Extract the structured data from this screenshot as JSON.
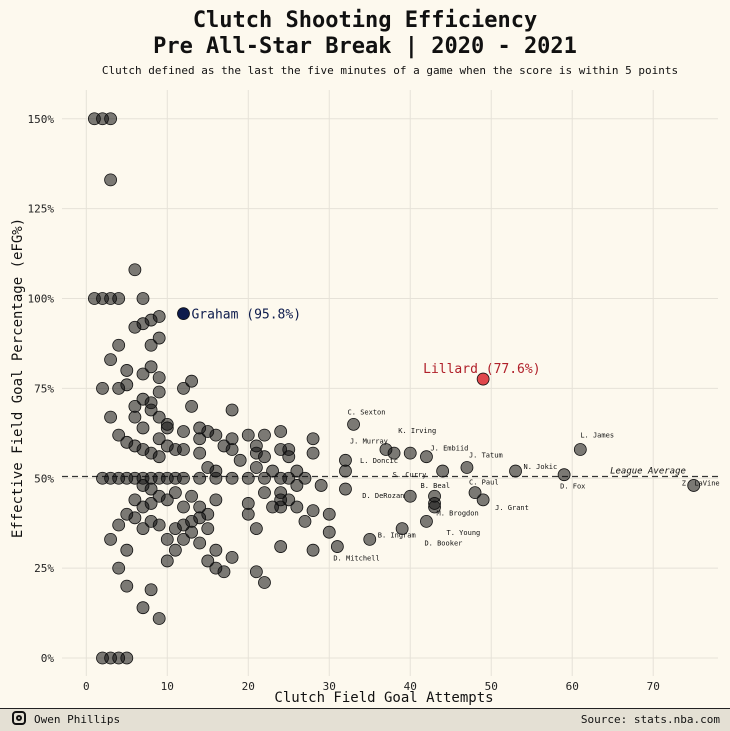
{
  "header": {
    "title_line1": "Clutch Shooting Efficiency",
    "title_line2": "Pre All-Star Break | 2020 - 2021",
    "subtitle": "Clutch defined as the last the five minutes of a game when the score is within 5 points"
  },
  "footer": {
    "author": "Owen Phillips",
    "source": "Source: stats.nba.com",
    "icon": "instagram-icon"
  },
  "colors": {
    "background": "#fdf9ee",
    "point_fill": "#111111",
    "highlight_graham": "#0d1b4c",
    "highlight_lillard": "#e0474c",
    "label_lillard": "#b0202a",
    "label_graham": "#0d1b4c"
  },
  "chart_data": {
    "type": "scatter",
    "xlabel": "Clutch Field Goal Attempts",
    "ylabel": "Effective Field Goal Percentage (eFG%)",
    "xlim": [
      -3,
      78
    ],
    "ylim": [
      -5,
      158
    ],
    "xticks": [
      0,
      10,
      20,
      30,
      40,
      50,
      60,
      70
    ],
    "yticks": [
      0,
      25,
      50,
      75,
      100,
      125,
      150
    ],
    "ytick_labels": [
      "0%",
      "25%",
      "50%",
      "75%",
      "100%",
      "125%",
      "150%"
    ],
    "grid": true,
    "league_average": {
      "y": 50.5,
      "label": "League Average"
    },
    "highlights": [
      {
        "name": "Graham",
        "label": "Graham (95.8%)",
        "x": 12,
        "y": 95.8,
        "color": "#0d1b4c"
      },
      {
        "name": "Lillard",
        "label": "Lillard (77.6%)",
        "x": 49,
        "y": 77.6,
        "color": "#e0474c"
      }
    ],
    "labeled_points": [
      {
        "label": "C. Sexton",
        "x": 33,
        "y": 65
      },
      {
        "label": "J. Murray",
        "x": 37,
        "y": 58
      },
      {
        "label": "L. Doncic",
        "x": 38,
        "y": 57
      },
      {
        "label": "K. Irving",
        "x": 40,
        "y": 57
      },
      {
        "label": "J. Embiid",
        "x": 42,
        "y": 56
      },
      {
        "label": "S. Curry",
        "x": 44,
        "y": 52
      },
      {
        "label": "J. Tatum",
        "x": 47,
        "y": 53
      },
      {
        "label": "N. Jokic",
        "x": 53,
        "y": 52
      },
      {
        "label": "L. James",
        "x": 61,
        "y": 58
      },
      {
        "label": "D. Fox",
        "x": 59,
        "y": 51
      },
      {
        "label": "Z. LaVine",
        "x": 75,
        "y": 48
      },
      {
        "label": "C. Paul",
        "x": 48,
        "y": 46
      },
      {
        "label": "B. Beal",
        "x": 43,
        "y": 45
      },
      {
        "label": "D. DeRozan",
        "x": 40,
        "y": 45
      },
      {
        "label": "J. Grant",
        "x": 49,
        "y": 44
      },
      {
        "label": "M. Brogdon",
        "x": 43,
        "y": 43
      },
      {
        "label": "T. Young",
        "x": 43,
        "y": 42
      },
      {
        "label": "D. Booker",
        "x": 42,
        "y": 38
      },
      {
        "label": "B. Ingram",
        "x": 35,
        "y": 33
      },
      {
        "label": "D. Mitchell",
        "x": 31,
        "y": 31
      }
    ],
    "points": [
      [
        1,
        150
      ],
      [
        2,
        150
      ],
      [
        3,
        150
      ],
      [
        3,
        133
      ],
      [
        1,
        100
      ],
      [
        2,
        100
      ],
      [
        3,
        100
      ],
      [
        4,
        100
      ],
      [
        6,
        108
      ],
      [
        7,
        100
      ],
      [
        6,
        92
      ],
      [
        7,
        93
      ],
      [
        8,
        94
      ],
      [
        9,
        95
      ],
      [
        9,
        89
      ],
      [
        8,
        87
      ],
      [
        4,
        87
      ],
      [
        3,
        83
      ],
      [
        5,
        80
      ],
      [
        7,
        79
      ],
      [
        8,
        81
      ],
      [
        9,
        78
      ],
      [
        9,
        74
      ],
      [
        8,
        71
      ],
      [
        7,
        72
      ],
      [
        5,
        76
      ],
      [
        2,
        75
      ],
      [
        4,
        75
      ],
      [
        6,
        70
      ],
      [
        8,
        69
      ],
      [
        9,
        67
      ],
      [
        10,
        65
      ],
      [
        7,
        64
      ],
      [
        6,
        67
      ],
      [
        3,
        67
      ],
      [
        4,
        62
      ],
      [
        5,
        60
      ],
      [
        6,
        59
      ],
      [
        7,
        58
      ],
      [
        8,
        57
      ],
      [
        9,
        56
      ],
      [
        10,
        59
      ],
      [
        11,
        58
      ],
      [
        12,
        58
      ],
      [
        9,
        61
      ],
      [
        10,
        64
      ],
      [
        12,
        63
      ],
      [
        13,
        70
      ],
      [
        12,
        75
      ],
      [
        13,
        77
      ],
      [
        14,
        64
      ],
      [
        15,
        63
      ],
      [
        14,
        61
      ],
      [
        16,
        62
      ],
      [
        14,
        57
      ],
      [
        15,
        53
      ],
      [
        16,
        52
      ],
      [
        17,
        59
      ],
      [
        18,
        61
      ],
      [
        18,
        58
      ],
      [
        19,
        55
      ],
      [
        18,
        69
      ],
      [
        20,
        62
      ],
      [
        21,
        57
      ],
      [
        22,
        62
      ],
      [
        21,
        59
      ],
      [
        22,
        56
      ],
      [
        20,
        50
      ],
      [
        21,
        53
      ],
      [
        23,
        52
      ],
      [
        24,
        63
      ],
      [
        24,
        58
      ],
      [
        25,
        58
      ],
      [
        25,
        56
      ],
      [
        26,
        52
      ],
      [
        27,
        50
      ],
      [
        28,
        61
      ],
      [
        28,
        57
      ],
      [
        29,
        48
      ],
      [
        2,
        50
      ],
      [
        3,
        50
      ],
      [
        4,
        50
      ],
      [
        5,
        50
      ],
      [
        6,
        50
      ],
      [
        7,
        50
      ],
      [
        8,
        50
      ],
      [
        9,
        50
      ],
      [
        10,
        50
      ],
      [
        11,
        50
      ],
      [
        12,
        50
      ],
      [
        14,
        50
      ],
      [
        16,
        50
      ],
      [
        18,
        50
      ],
      [
        22,
        50
      ],
      [
        24,
        50
      ],
      [
        25,
        50
      ],
      [
        26,
        48
      ],
      [
        7,
        48
      ],
      [
        8,
        47
      ],
      [
        9,
        45
      ],
      [
        10,
        44
      ],
      [
        8,
        43
      ],
      [
        7,
        42
      ],
      [
        6,
        44
      ],
      [
        5,
        40
      ],
      [
        4,
        37
      ],
      [
        6,
        39
      ],
      [
        7,
        36
      ],
      [
        8,
        38
      ],
      [
        9,
        37
      ],
      [
        10,
        33
      ],
      [
        11,
        36
      ],
      [
        12,
        37
      ],
      [
        13,
        38
      ],
      [
        14,
        42
      ],
      [
        12,
        42
      ],
      [
        13,
        45
      ],
      [
        11,
        46
      ],
      [
        13,
        35
      ],
      [
        14,
        39
      ],
      [
        15,
        40
      ],
      [
        16,
        44
      ],
      [
        15,
        36
      ],
      [
        16,
        30
      ],
      [
        14,
        32
      ],
      [
        12,
        33
      ],
      [
        11,
        30
      ],
      [
        10,
        27
      ],
      [
        15,
        27
      ],
      [
        16,
        25
      ],
      [
        17,
        24
      ],
      [
        18,
        28
      ],
      [
        20,
        43
      ],
      [
        20,
        40
      ],
      [
        21,
        36
      ],
      [
        22,
        46
      ],
      [
        23,
        42
      ],
      [
        24,
        44
      ],
      [
        24,
        42
      ],
      [
        24,
        46
      ],
      [
        25,
        44
      ],
      [
        26,
        42
      ],
      [
        27,
        38
      ],
      [
        28,
        41
      ],
      [
        30,
        40
      ],
      [
        30,
        35
      ],
      [
        28,
        30
      ],
      [
        24,
        31
      ],
      [
        21,
        24
      ],
      [
        22,
        21
      ],
      [
        3,
        33
      ],
      [
        4,
        25
      ],
      [
        5,
        30
      ],
      [
        5,
        20
      ],
      [
        7,
        14
      ],
      [
        8,
        19
      ],
      [
        9,
        11
      ],
      [
        2,
        0
      ],
      [
        3,
        0
      ],
      [
        4,
        0
      ],
      [
        5,
        0
      ],
      [
        32,
        52
      ],
      [
        32,
        55
      ],
      [
        32,
        47
      ],
      [
        39,
        36
      ]
    ]
  }
}
